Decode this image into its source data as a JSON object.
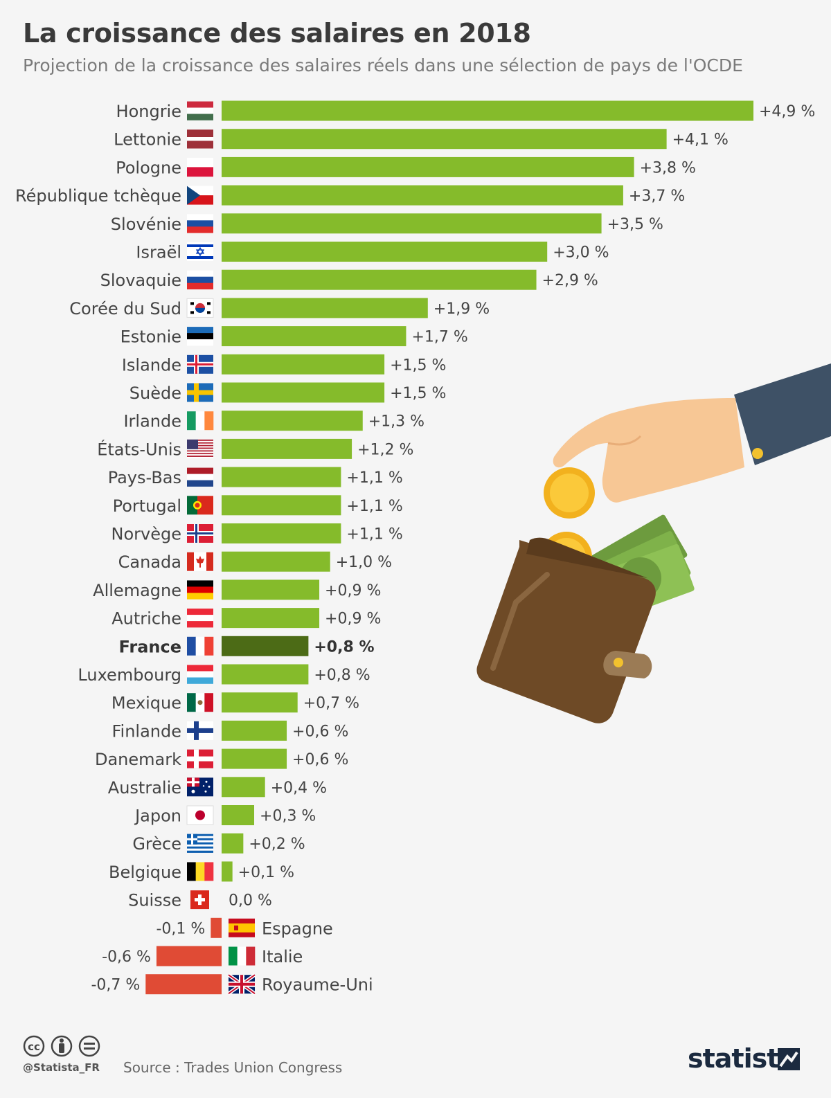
{
  "header": {
    "title": "La croissance des salaires en 2018",
    "subtitle": "Projection de la croissance des salaires réels dans une sélection de pays de l'OCDE"
  },
  "colors": {
    "positive": "#85bb2b",
    "highlight": "#4c6b16",
    "negative": "#e04b35"
  },
  "chart_data": {
    "type": "bar",
    "orientation": "horizontal",
    "title": "La croissance des salaires en 2018",
    "subtitle": "Projection de la croissance des salaires réels dans une sélection de pays de l'OCDE",
    "highlight": "France",
    "xlim": [
      -0.7,
      4.9
    ],
    "grid": false,
    "categories": [
      "Hongrie",
      "Lettonie",
      "Pologne",
      "République tchèque",
      "Slovénie",
      "Israël",
      "Slovaquie",
      "Corée du Sud",
      "Estonie",
      "Islande",
      "Suède",
      "Irlande",
      "États-Unis",
      "Pays-Bas",
      "Portugal",
      "Norvège",
      "Canada",
      "Allemagne",
      "Autriche",
      "France",
      "Luxembourg",
      "Mexique",
      "Finlande",
      "Danemark",
      "Australie",
      "Japon",
      "Grèce",
      "Belgique",
      "Suisse",
      "Espagne",
      "Italie",
      "Royaume-Uni"
    ],
    "values": [
      4.9,
      4.1,
      3.8,
      3.7,
      3.5,
      3.0,
      2.9,
      1.9,
      1.7,
      1.5,
      1.5,
      1.3,
      1.2,
      1.1,
      1.1,
      1.1,
      1.0,
      0.9,
      0.9,
      0.8,
      0.8,
      0.7,
      0.6,
      0.6,
      0.4,
      0.3,
      0.2,
      0.1,
      0.0,
      -0.1,
      -0.6,
      -0.7
    ],
    "value_labels": [
      "+4,9 %",
      "+4,1 %",
      "+3,8 %",
      "+3,7 %",
      "+3,5 %",
      "+3,0 %",
      "+2,9 %",
      "+1,9 %",
      "+1,7 %",
      "+1,5 %",
      "+1,5 %",
      "+1,3 %",
      "+1,2 %",
      "+1,1 %",
      "+1,1 %",
      "+1,1 %",
      "+1,0 %",
      "+0,9 %",
      "+0,9 %",
      "+0,8 %",
      "+0,8 %",
      "+0,7 %",
      "+0,6 %",
      "+0,6 %",
      "+0,4 %",
      "+0,3 %",
      "+0,2 %",
      "+0,1 %",
      "0,0 %",
      "-0,1 %",
      "-0,6 %",
      "-0,7 %"
    ]
  },
  "footer": {
    "handle": "@Statista_FR",
    "source": "Source : Trades Union Congress",
    "brand": "statista"
  }
}
